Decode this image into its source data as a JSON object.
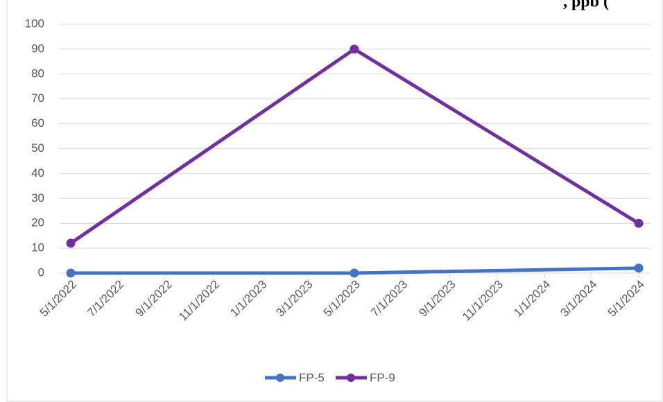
{
  "chart_data": {
    "type": "line",
    "title": ", ppb (",
    "x": [
      "5/1/2022",
      "5/1/2023",
      "5/1/2024"
    ],
    "series": [
      {
        "name": "FP-5",
        "color": "#4472c4",
        "values": [
          0,
          0,
          2
        ]
      },
      {
        "name": "FP-9",
        "color": "#7030a0",
        "values": [
          12,
          90,
          20
        ]
      }
    ],
    "xlim": [
      "5/1/2022",
      "5/1/2024"
    ],
    "xticks": [
      "5/1/2022",
      "7/1/2022",
      "9/1/2022",
      "11/1/2022",
      "1/1/2023",
      "3/1/2023",
      "5/1/2023",
      "7/1/2023",
      "9/1/2023",
      "11/1/2023",
      "1/1/2024",
      "3/1/2024",
      "5/1/2024"
    ],
    "ylim": [
      0,
      100
    ],
    "yticks": [
      0,
      10,
      20,
      30,
      40,
      50,
      60,
      70,
      80,
      90,
      100
    ],
    "grid": true,
    "legend": "bottom"
  }
}
